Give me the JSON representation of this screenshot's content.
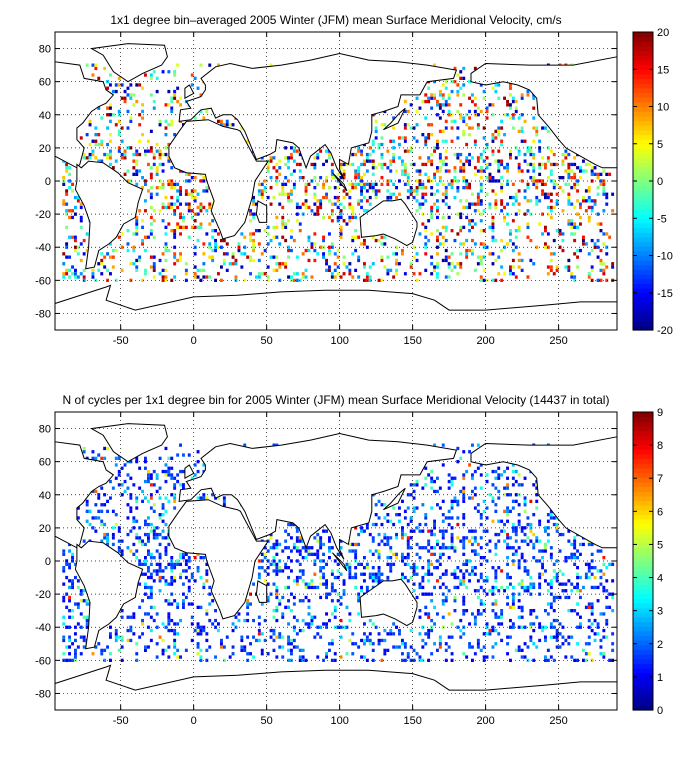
{
  "chart_data": [
    {
      "type": "heatmap",
      "title": "1x1 degree bin–averaged 2005 Winter (JFM) mean Surface Meridional Velocity, cm/s",
      "xlabel": "",
      "ylabel": "",
      "xlim": [
        -95,
        290
      ],
      "ylim": [
        -90,
        90
      ],
      "x_ticks": [
        -50,
        0,
        50,
        100,
        150,
        200,
        250
      ],
      "y_ticks": [
        80,
        60,
        40,
        20,
        0,
        -20,
        -40,
        -60,
        -80
      ],
      "grid": true,
      "grid_style": "dotted",
      "colorbar": {
        "colormap": "jet",
        "range": [
          -20,
          20
        ],
        "ticks": [
          20,
          15,
          10,
          5,
          0,
          -5,
          -10,
          -15,
          -20
        ]
      },
      "map_overlay": "world coastlines"
    },
    {
      "type": "heatmap",
      "title": "N of cycles per 1x1 degree bin for 2005 Winter (JFM) mean Surface Meridional Velocity (14437 in total)",
      "xlabel": "",
      "ylabel": "",
      "xlim": [
        -95,
        290
      ],
      "ylim": [
        -90,
        90
      ],
      "x_ticks": [
        -50,
        0,
        50,
        100,
        150,
        200,
        250
      ],
      "y_ticks": [
        80,
        60,
        40,
        20,
        0,
        -20,
        -40,
        -60,
        -80
      ],
      "grid": true,
      "grid_style": "dotted",
      "colorbar": {
        "colormap": "jet",
        "range": [
          0,
          9
        ],
        "ticks": [
          9,
          8,
          7,
          6,
          5,
          4,
          3,
          2,
          1,
          0
        ]
      },
      "map_overlay": "world coastlines"
    }
  ]
}
